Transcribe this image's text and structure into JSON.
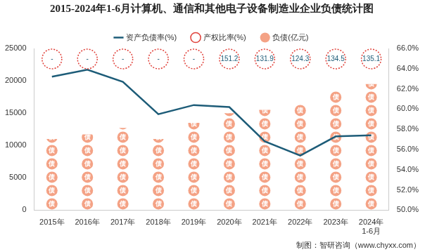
{
  "chart_data": {
    "type": "bar",
    "title": "2015-2024年1-6月计算机、通信和其他电子设备制造业企业负债统计图",
    "source": "制图：智研咨询（www.chyxx.com）",
    "categories": [
      "2015年",
      "2016年",
      "2017年",
      "2018年",
      "2019年",
      "2020年",
      "2021年",
      "2022年",
      "2023年",
      "2024年\n1-6月"
    ],
    "series": [
      {
        "name": "负债(亿元)",
        "type": "bar",
        "color": "#f4a285",
        "icon_text": "债",
        "values": [
          11000,
          11700,
          12700,
          11000,
          13500,
          15000,
          15500,
          16500,
          18500,
          19500
        ]
      },
      {
        "name": "产权比率(%)",
        "type": "scatter",
        "color": "#e0413a",
        "marker": "circle",
        "line_style": "dotted",
        "data_labels": true,
        "values": [
          null,
          null,
          null,
          null,
          null,
          151.2,
          131.9,
          124.3,
          134.5,
          135.1
        ],
        "value_labels": [
          "-",
          "-",
          "-",
          "-",
          "-",
          "151.2",
          "131.9",
          "124.3",
          "134.5",
          "135.1"
        ]
      },
      {
        "name": "资产负债率(%)",
        "type": "line",
        "color": "#1d5c78",
        "axis": "y2",
        "values": [
          63.2,
          63.9,
          62.7,
          59.5,
          60.4,
          60.2,
          56.8,
          55.4,
          57.3,
          57.4
        ]
      }
    ],
    "ylim": [
      0,
      25000
    ],
    "yticks": [
      0,
      5000,
      10000,
      15000,
      20000,
      25000
    ],
    "y2lim": [
      50,
      66
    ],
    "y2ticks": [
      {
        "value": 50,
        "label": "50.0%"
      },
      {
        "value": 52,
        "label": "52.0%"
      },
      {
        "value": 54,
        "label": "54.0%"
      },
      {
        "value": 56,
        "label": "56.0%"
      },
      {
        "value": 58,
        "label": "58.0%"
      },
      {
        "value": 60,
        "label": "60.0%"
      },
      {
        "value": 62,
        "label": "62.0%"
      },
      {
        "value": 64,
        "label": "64.0%"
      },
      {
        "value": 66,
        "label": "66.0%"
      }
    ],
    "grid": false,
    "legend": "top"
  }
}
